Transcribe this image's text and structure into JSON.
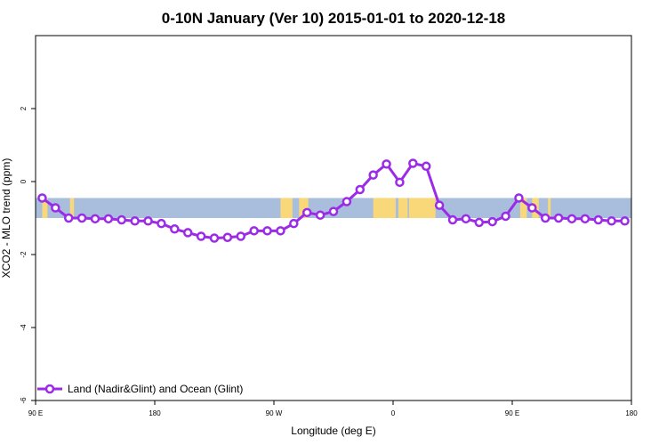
{
  "chart_data": {
    "type": "line",
    "title": "0-10N January (Ver 10)   2015-01-01 to 2020-12-18",
    "xlabel": "Longitude (deg E)",
    "ylabel": "XCO2 - MLO trend (ppm)",
    "xlim": [
      90,
      540
    ],
    "ylim": [
      -6,
      4
    ],
    "x_ticks": [
      {
        "value": 90,
        "label": "90 E"
      },
      {
        "value": 180,
        "label": "180"
      },
      {
        "value": 270,
        "label": "90 W"
      },
      {
        "value": 360,
        "label": "0"
      },
      {
        "value": 450,
        "label": "90 E"
      },
      {
        "value": 540,
        "label": "180"
      }
    ],
    "y_ticks": [
      {
        "value": -6,
        "label": "-6"
      },
      {
        "value": -4,
        "label": "-4"
      },
      {
        "value": -2,
        "label": "-2"
      },
      {
        "value": 0,
        "label": "0"
      },
      {
        "value": 2,
        "label": "2"
      }
    ],
    "band": {
      "ymin": -1.0,
      "ymax": -0.45,
      "ocean_color": "#a8bedc",
      "land_color": "#f8d878"
    },
    "land_segments": [
      [
        95,
        99
      ],
      [
        116,
        119
      ],
      [
        275,
        284
      ],
      [
        289,
        296
      ],
      [
        345,
        362
      ],
      [
        364,
        371
      ],
      [
        372,
        392
      ],
      [
        456,
        461
      ],
      [
        465,
        470
      ],
      [
        477,
        479
      ]
    ],
    "legend": {
      "position": "bottom-left",
      "label": "Land (Nadir&Glint) and Ocean (Glint)"
    },
    "series": [
      {
        "name": "Land (Nadir&Glint) and Ocean (Glint)",
        "color": "#9b2be6",
        "x": [
          95,
          105,
          115,
          125,
          135,
          145,
          155,
          165,
          175,
          185,
          195,
          205,
          215,
          225,
          235,
          245,
          255,
          265,
          275,
          285,
          295,
          305,
          315,
          325,
          335,
          345,
          355,
          365,
          375,
          385,
          395,
          405,
          415,
          425,
          435,
          445,
          455,
          465,
          475,
          485,
          495,
          505,
          515,
          525,
          535
        ],
        "values": [
          -0.45,
          -0.72,
          -1.0,
          -1.0,
          -1.02,
          -1.02,
          -1.05,
          -1.08,
          -1.08,
          -1.15,
          -1.3,
          -1.4,
          -1.5,
          -1.55,
          -1.53,
          -1.5,
          -1.35,
          -1.35,
          -1.35,
          -1.15,
          -0.85,
          -0.92,
          -0.82,
          -0.55,
          -0.22,
          0.18,
          0.48,
          -0.02,
          0.5,
          0.42,
          -0.65,
          -1.05,
          -1.02,
          -1.12,
          -1.1,
          -0.95,
          -0.45,
          -0.72,
          -1.0,
          -1.0,
          -1.02,
          -1.02,
          -1.05,
          -1.08,
          -1.08
        ]
      }
    ]
  }
}
